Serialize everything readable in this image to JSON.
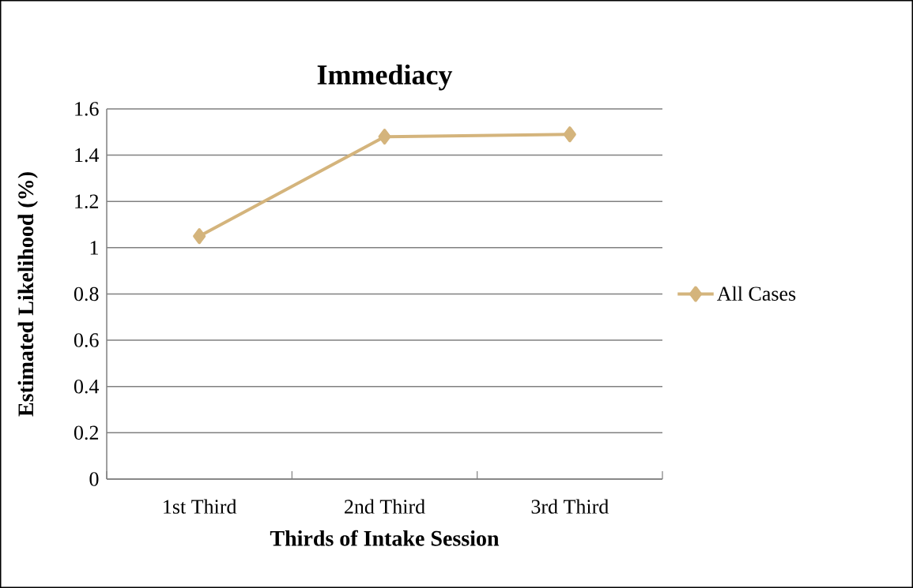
{
  "chart_data": {
    "type": "line",
    "title": "Immediacy",
    "xlabel": "Thirds of Intake Session",
    "ylabel": "Estimated Likelihood (%)",
    "categories": [
      "1st Third",
      "2nd Third",
      "3rd Third"
    ],
    "series": [
      {
        "name": "All Cases",
        "color": "#d4b47c",
        "values": [
          1.05,
          1.48,
          1.49
        ]
      }
    ],
    "ylim": [
      0,
      1.6
    ],
    "yticks": [
      0,
      0.2,
      0.4,
      0.6,
      0.8,
      1,
      1.2,
      1.4,
      1.6
    ],
    "grid": "y",
    "legend": "right",
    "marker": "diamond",
    "line_style": "solid"
  }
}
